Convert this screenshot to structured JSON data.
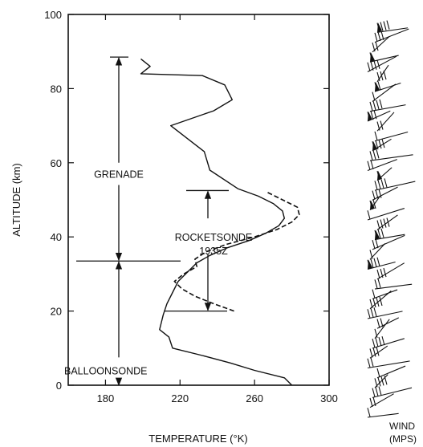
{
  "chart_data": {
    "type": "line",
    "xlabel": "TEMPERATURE (°K)",
    "ylabel": "ALTITUDE (km)",
    "xlim": [
      160,
      300
    ],
    "ylim": [
      0,
      100
    ],
    "xticks": [
      180,
      220,
      260,
      300
    ],
    "yticks": [
      0,
      20,
      40,
      60,
      80,
      100
    ],
    "grid": false,
    "series": [
      {
        "style": "solid",
        "points": [
          [
            280,
            0
          ],
          [
            276,
            2
          ],
          [
            260,
            4
          ],
          [
            247,
            6
          ],
          [
            232,
            8
          ],
          [
            216,
            10
          ],
          [
            214,
            13
          ],
          [
            209,
            15
          ],
          [
            210,
            17
          ],
          [
            211,
            19
          ],
          [
            213,
            22
          ],
          [
            216,
            25
          ],
          [
            219,
            28
          ],
          [
            225,
            31
          ],
          [
            229,
            33
          ],
          [
            236,
            35
          ],
          [
            245,
            37
          ],
          [
            257,
            39
          ],
          [
            266,
            41
          ],
          [
            273,
            43
          ],
          [
            276,
            45
          ],
          [
            275,
            47
          ],
          [
            270,
            49
          ],
          [
            262,
            51
          ],
          [
            251,
            53
          ],
          [
            236,
            58
          ],
          [
            233,
            63
          ],
          [
            215,
            70
          ],
          [
            238,
            74
          ],
          [
            248,
            77
          ],
          [
            244,
            81
          ],
          [
            232,
            83.5
          ],
          [
            199,
            84
          ],
          [
            204,
            86
          ],
          [
            199,
            88
          ]
        ]
      },
      {
        "style": "dashed",
        "points": [
          [
            249,
            20
          ],
          [
            238,
            22
          ],
          [
            228,
            24
          ],
          [
            221,
            26
          ],
          [
            217,
            28
          ],
          [
            222,
            30
          ],
          [
            229,
            32
          ],
          [
            228,
            34
          ],
          [
            234,
            36
          ],
          [
            245,
            38
          ],
          [
            260,
            40
          ],
          [
            272,
            42
          ],
          [
            280,
            44
          ],
          [
            284,
            46
          ],
          [
            283,
            48
          ],
          [
            275,
            50
          ],
          [
            267,
            52
          ]
        ]
      }
    ],
    "annotations": [
      {
        "label": "GRENADE",
        "from": 33.5,
        "to": 88.5
      },
      {
        "label": "ROCKETSONDE",
        "label2": "1935Z",
        "from": 20,
        "to": 52.5
      },
      {
        "label": "BALLOONSONDE",
        "from": 0,
        "to": 33.5
      }
    ]
  },
  "wind_panel": {
    "label": "WIND",
    "unit": "(MPS)"
  }
}
